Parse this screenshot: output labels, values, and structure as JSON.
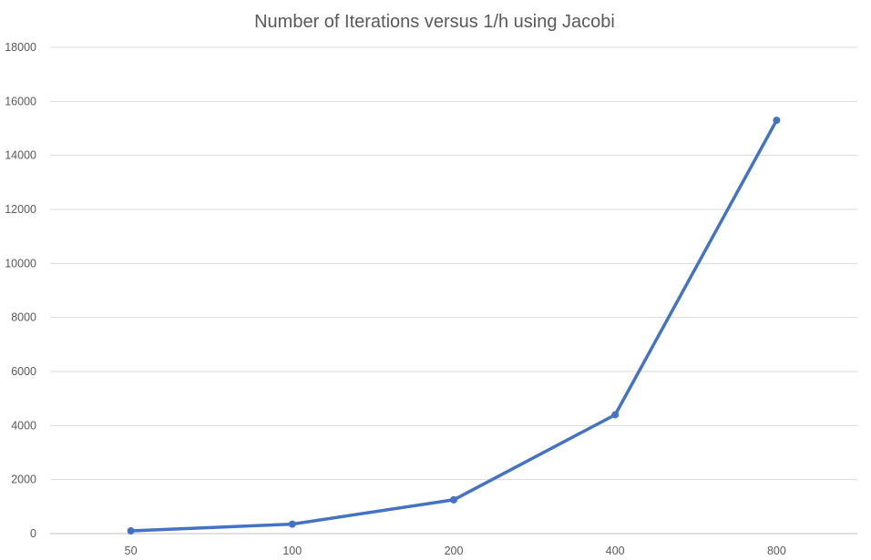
{
  "chart_data": {
    "type": "line",
    "title": "Number of Iterations versus 1/h using Jacobi",
    "xlabel": "",
    "ylabel": "",
    "categories": [
      "50",
      "100",
      "200",
      "400",
      "800"
    ],
    "series": [
      {
        "values": [
          100,
          350,
          1250,
          4400,
          15300
        ]
      }
    ],
    "ylim": [
      0,
      18000
    ],
    "yticks": [
      0,
      2000,
      4000,
      6000,
      8000,
      10000,
      12000,
      14000,
      16000,
      18000
    ],
    "grid": true,
    "legend": "none",
    "colors": {
      "series": "#4472c4",
      "grid": "#d9d9d9",
      "text": "#595959"
    }
  }
}
